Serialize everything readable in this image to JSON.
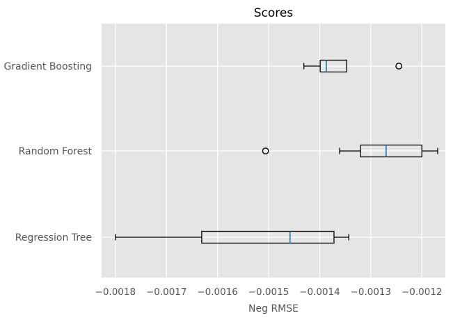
{
  "chart_data": {
    "type": "boxplot",
    "orientation": "horizontal",
    "title": "Scores",
    "xlabel": "Neg RMSE",
    "ylabel": "",
    "xlim": [
      -0.001827,
      -0.001154
    ],
    "xticks": [
      -0.0018,
      -0.0017,
      -0.0016,
      -0.0015,
      -0.0014,
      -0.0013,
      -0.0012
    ],
    "xtick_labels": [
      "−0.0018",
      "−0.0017",
      "−0.0016",
      "−0.0015",
      "−0.0014",
      "−0.0013",
      "−0.0012"
    ],
    "grid": true,
    "style": "ggplot",
    "colors": {
      "axes_background": "#e5e5e5",
      "grid": "#ffffff",
      "box": "#000000",
      "median": "#1f77b4",
      "text": "#555555",
      "title": "#000000"
    },
    "categories": [
      "Gradient Boosting",
      "Random Forest",
      "Regression Tree"
    ],
    "boxes": [
      {
        "label": "Gradient Boosting",
        "whisker_low": -0.001431,
        "q1": -0.001399,
        "median": -0.001387,
        "q3": -0.001347,
        "whisker_high": -0.001347,
        "outliers": [
          -0.001245
        ]
      },
      {
        "label": "Random Forest",
        "whisker_low": -0.001361,
        "q1": -0.00132,
        "median": -0.00127,
        "q3": -0.0012,
        "whisker_high": -0.001169,
        "outliers": [
          -0.001506
        ]
      },
      {
        "label": "Regression Tree",
        "whisker_low": -0.0018,
        "q1": -0.001631,
        "median": -0.001458,
        "q3": -0.001372,
        "whisker_high": -0.001343,
        "outliers": []
      }
    ]
  }
}
